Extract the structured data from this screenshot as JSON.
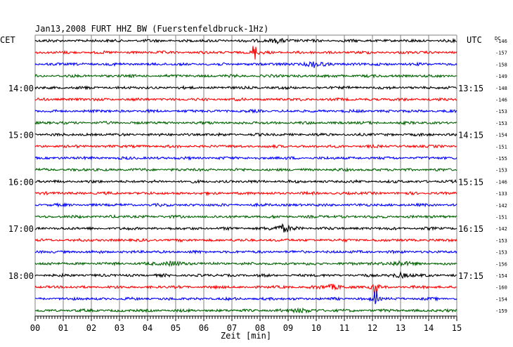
{
  "chart_data": {
    "type": "line",
    "title": "Jan13,2008   FURT HHZ BW (Fuerstenfeldbruck-1Hz)",
    "left_timezone": "CET",
    "right_timezone": "UTC",
    "right_header": "DC",
    "xlabel": "Zeit [min]",
    "xlim": [
      0,
      15
    ],
    "x_ticks": [
      "00",
      "01",
      "02",
      "03",
      "04",
      "05",
      "06",
      "07",
      "08",
      "09",
      "10",
      "11",
      "12",
      "13",
      "14",
      "15"
    ],
    "left_hour_labels": [
      {
        "row": 4,
        "text": "14:00"
      },
      {
        "row": 8,
        "text": "15:00"
      },
      {
        "row": 12,
        "text": "16:00"
      },
      {
        "row": 16,
        "text": "17:00"
      },
      {
        "row": 20,
        "text": "18:00"
      }
    ],
    "right_hour_labels": [
      {
        "row": 4,
        "text": "13:15"
      },
      {
        "row": 8,
        "text": "14:15"
      },
      {
        "row": 12,
        "text": "15:15"
      },
      {
        "row": 16,
        "text": "16:15"
      },
      {
        "row": 20,
        "text": "17:15"
      }
    ],
    "trace_colors": [
      "#000000",
      "#ff0000",
      "#0000ff",
      "#006400"
    ],
    "dc_offsets": [
      "-146",
      "-157",
      "-158",
      "-149",
      "-148",
      "-146",
      "-153",
      "-153",
      "-154",
      "-151",
      "-155",
      "-153",
      "-146",
      "-133",
      "-142",
      "-151",
      "-142",
      "-153",
      "-153",
      "-156",
      "-154",
      "-160",
      "-154",
      "-159"
    ],
    "grid": true,
    "rows": 24,
    "events": [
      {
        "row": 0,
        "minute": 8.6,
        "amp": 0.35
      },
      {
        "row": 1,
        "minute": 7.8,
        "amp": 1.2
      },
      {
        "row": 2,
        "minute": 9.9,
        "amp": 0.45
      },
      {
        "row": 16,
        "minute": 8.8,
        "amp": 0.6
      },
      {
        "row": 19,
        "minute": 4.9,
        "amp": 0.4
      },
      {
        "row": 19,
        "minute": 12.9,
        "amp": 0.4
      },
      {
        "row": 20,
        "minute": 13.0,
        "amp": 0.35
      },
      {
        "row": 21,
        "minute": 10.6,
        "amp": 0.4
      },
      {
        "row": 21,
        "minute": 12.1,
        "amp": 1.8
      },
      {
        "row": 22,
        "minute": 12.1,
        "amp": 1.2
      },
      {
        "row": 23,
        "minute": 9.5,
        "amp": 0.35
      }
    ]
  }
}
